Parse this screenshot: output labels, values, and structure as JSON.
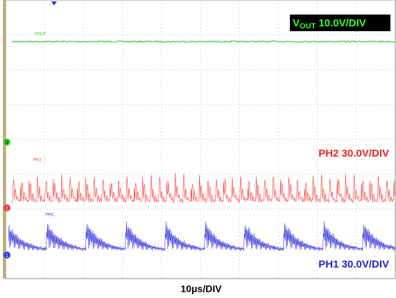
{
  "scope": {
    "vout_label": {
      "symbol": "V",
      "subscript": "OUT",
      "scale": " 10.0V/DIV"
    },
    "ph2_label": "PH2 30.0V/DIV",
    "ph1_label": "PH1 30.0V/DIV",
    "time_scale": "10μs/DIV",
    "trace_tags": [
      "VOUT",
      "PH2",
      "PH1"
    ],
    "channel_markers": [
      "3",
      "2",
      "1"
    ]
  }
}
